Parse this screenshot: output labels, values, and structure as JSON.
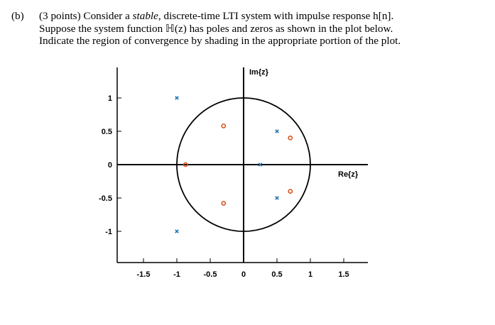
{
  "question": {
    "label": "(b)",
    "line1_pre": "(3 points) Consider a ",
    "line1_em": "stable",
    "line1_post": ", discrete-time LTI system with impulse response h[n].",
    "line2": "Suppose the system function ℍ(z) has poles and zeros as shown in the plot below.",
    "line3": "Indicate the region of convergence by shading in the appropriate portion of the plot."
  },
  "chart_data": {
    "type": "scatter",
    "title": "",
    "xlabel": "Re{z}",
    "ylabel": "Im{z}",
    "xlim": [
      -1.9,
      1.85
    ],
    "ylim": [
      -1.4,
      1.5
    ],
    "x_ticks": [
      -1.5,
      -1,
      -0.5,
      0,
      0.5,
      1,
      1.5
    ],
    "x_tick_labels": [
      "-1.5",
      "-1",
      "-0.5",
      "0",
      "0.5",
      "1",
      "1.5"
    ],
    "y_ticks": [
      1,
      0.5,
      0,
      -0.5,
      -1
    ],
    "y_tick_labels": [
      "1",
      "0.5",
      "0",
      "-0.5",
      "-1"
    ],
    "unit_circle": {
      "radius": 1
    },
    "grid": false,
    "series": [
      {
        "marker": "x",
        "color": "#1f77b4",
        "points": [
          [
            -1,
            1
          ],
          [
            -1,
            -1
          ],
          [
            0.5,
            0.5
          ],
          [
            0.5,
            -0.5
          ],
          [
            0.25,
            0
          ]
        ]
      },
      {
        "marker": "o",
        "color": "#d95319",
        "points": [
          [
            -0.3,
            0.58
          ],
          [
            -0.3,
            -0.58
          ],
          [
            0.7,
            0.4
          ],
          [
            0.7,
            -0.4
          ],
          [
            -0.87,
            0
          ]
        ]
      }
    ]
  }
}
